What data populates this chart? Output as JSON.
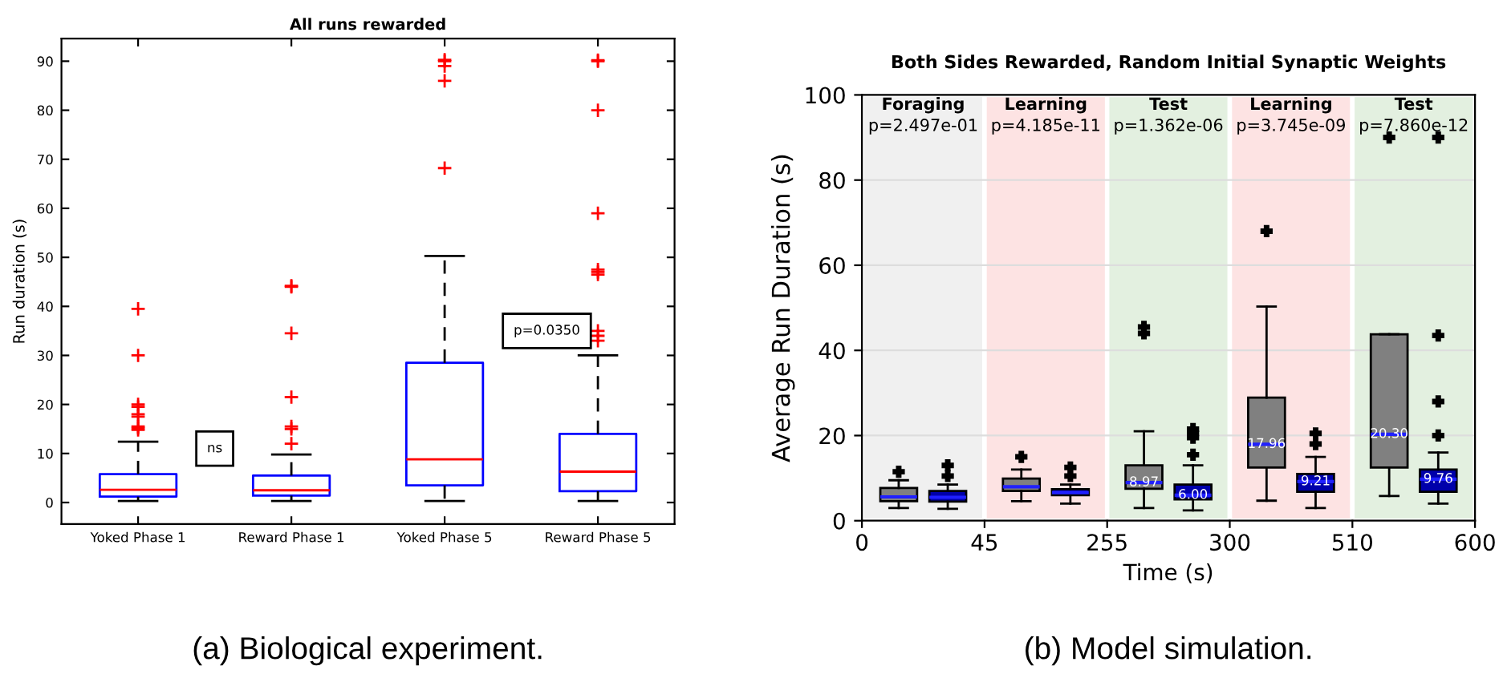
{
  "chart_data": [
    {
      "type": "box",
      "title": "All runs rewarded",
      "ylabel": "Run duration (s)",
      "categories": [
        "Yoked Phase 1",
        "Reward Phase 1",
        "Yoked Phase 5",
        "Reward Phase 5"
      ],
      "color": "#0000ff",
      "boxes": [
        {
          "low": 0.3,
          "q1": 1.2,
          "median": 2.6,
          "q3": 5.8,
          "high": 12.4,
          "outliers": [
            14.8,
            15.2,
            15.5,
            17.5,
            18,
            19.5,
            20,
            30,
            39.5
          ]
        },
        {
          "low": 0.3,
          "q1": 1.4,
          "median": 2.5,
          "q3": 5.5,
          "high": 9.8,
          "outliers": [
            12,
            15,
            15.5,
            21.5,
            34.5,
            44,
            44.2
          ]
        },
        {
          "low": 0.3,
          "q1": 3.5,
          "median": 8.8,
          "q3": 28.5,
          "high": 50.3,
          "outliers": [
            68.2,
            86,
            89,
            90,
            90.3
          ]
        },
        {
          "low": 0.3,
          "q1": 2.3,
          "median": 6.3,
          "q3": 14,
          "high": 30,
          "outliers": [
            33,
            34,
            35,
            46.5,
            47,
            47.5,
            59,
            80,
            90,
            90.2
          ]
        }
      ],
      "ylim": [
        -4.4,
        94.6
      ],
      "yticks": [
        0,
        10,
        20,
        30,
        40,
        50,
        60,
        70,
        80,
        90
      ],
      "grid": false,
      "annotations": [
        "ns",
        "p=0.0350",
        "(a) Biological experiment."
      ]
    },
    {
      "type": "box",
      "title": "Both Sides Rewarded, Random Initial Synaptic Weights",
      "xlabel": "Time (s)",
      "ylabel": "Average Run Duration (s)",
      "categories": [
        "Foraging\np=2.497e-01",
        "Learning\np=4.185e-11",
        "Test\np=1.362e-06",
        "Learning\np=3.745e-09",
        "Test\np=7.860e-12"
      ],
      "series": [
        {
          "color": "#808080",
          "value_labels": [
            null,
            null,
            "8.97",
            "17.96",
            "20.30"
          ],
          "boxes": [
            {
              "low": 3,
              "q1": 4.6,
              "median": 5.6,
              "q3": 7.7,
              "high": 9.5,
              "outliers": [
                11.5
              ]
            },
            {
              "low": 4.6,
              "q1": 7,
              "median": 7.96,
              "q3": 9.9,
              "high": 12,
              "outliers": [
                15
              ]
            },
            {
              "low": 3,
              "q1": 7.5,
              "median": 8.97,
              "q3": 13,
              "high": 21,
              "outliers": [
                44,
                45.5
              ]
            },
            {
              "low": 4.7,
              "q1": 12.5,
              "median": 17.96,
              "q3": 28.9,
              "high": 50.3,
              "outliers": [
                68
              ]
            },
            {
              "low": 5.8,
              "q1": 12.5,
              "median": 20.3,
              "q3": 43.8,
              "high": 43.8,
              "outliers": [
                90
              ]
            }
          ]
        },
        {
          "color": "#0000aa",
          "value_labels": [
            null,
            null,
            "6.00",
            "9.21",
            "9.76"
          ],
          "boxes": [
            {
              "low": 2.8,
              "q1": 4.5,
              "median": 5.5,
              "q3": 7,
              "high": 8.5,
              "outliers": [
                10.5,
                13
              ]
            },
            {
              "low": 4,
              "q1": 6,
              "median": 6.6,
              "q3": 7.4,
              "high": 8.5,
              "outliers": [
                10.5,
                12.5
              ]
            },
            {
              "low": 2.4,
              "q1": 5,
              "median": 6.0,
              "q3": 8.5,
              "high": 13,
              "outliers": [
                15.5,
                19.5,
                20.5,
                21.5
              ]
            },
            {
              "low": 3,
              "q1": 6.8,
              "median": 9.21,
              "q3": 11,
              "high": 15,
              "outliers": [
                18,
                20.5
              ]
            },
            {
              "low": 4,
              "q1": 6.8,
              "median": 9.76,
              "q3": 12,
              "high": 16,
              "outliers": [
                20,
                28,
                43.5,
                90
              ]
            }
          ]
        }
      ],
      "ylim": [
        0,
        100
      ],
      "yticks": [
        0,
        20,
        40,
        60,
        80,
        100
      ],
      "grid": "y",
      "bands": [
        {
          "axis": "x",
          "from": "Foraging\np=2.497e-01",
          "to": "Foraging\np=2.497e-01",
          "color": "#f0f0f0"
        },
        {
          "axis": "x",
          "from": "Learning\np=4.185e-11",
          "to": "Learning\np=4.185e-11",
          "color": "#fde3e3"
        },
        {
          "axis": "x",
          "from": "Test\np=1.362e-06",
          "to": "Test\np=1.362e-06",
          "color": "#e3f0e0"
        },
        {
          "axis": "x",
          "from": "Learning\np=3.745e-09",
          "to": "Learning\np=3.745e-09",
          "color": "#fde3e3"
        },
        {
          "axis": "x",
          "from": "Test\np=7.860e-12",
          "to": "Test\np=7.860e-12",
          "color": "#e3f0e0"
        }
      ],
      "annotations": [
        "0",
        "45",
        "255",
        "300",
        "510",
        "600",
        "(b) Model simulation."
      ]
    }
  ]
}
